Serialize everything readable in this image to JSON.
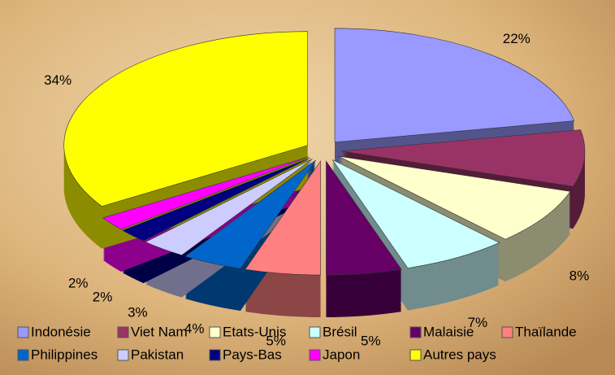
{
  "chart_data": {
    "type": "pie",
    "categories": [
      "Indonésie",
      "Viet Nam",
      "Etats-Unis",
      "Brésil",
      "Malaisie",
      "Thaïlande",
      "Philippines",
      "Pakistan",
      "Pays-Bas",
      "Japon",
      "Autres pays"
    ],
    "values": [
      22,
      8,
      8,
      7,
      5,
      5,
      4,
      3,
      2,
      2,
      34
    ],
    "value_labels": [
      "22%",
      "8%",
      "8%",
      "7%",
      "5%",
      "5%",
      "4%",
      "3%",
      "2%",
      "2%",
      "34%"
    ],
    "colors": [
      "#9999ff",
      "#993366",
      "#ffffcc",
      "#ccffff",
      "#660066",
      "#ff8080",
      "#0066cc",
      "#ccccff",
      "#000080",
      "#ff00ff",
      "#ffff00"
    ],
    "legend": "bottom"
  }
}
